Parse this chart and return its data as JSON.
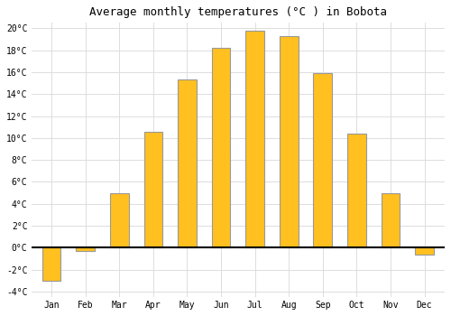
{
  "title": "Average monthly temperatures (°C ) in Bobota",
  "months": [
    "Jan",
    "Feb",
    "Mar",
    "Apr",
    "May",
    "Jun",
    "Jul",
    "Aug",
    "Sep",
    "Oct",
    "Nov",
    "Dec"
  ],
  "temperatures": [
    -3.0,
    -0.3,
    5.0,
    10.6,
    15.3,
    18.2,
    19.8,
    19.3,
    15.9,
    10.4,
    5.0,
    -0.6
  ],
  "bar_color": "#FFC020",
  "bar_edge_color": "#999999",
  "ylim": [
    -4.5,
    20.5
  ],
  "yticks": [
    -4,
    -2,
    0,
    2,
    4,
    6,
    8,
    10,
    12,
    14,
    16,
    18,
    20
  ],
  "ytick_labels": [
    "-4°C",
    "-2°C",
    "0°C",
    "2°C",
    "4°C",
    "6°C",
    "8°C",
    "10°C",
    "12°C",
    "14°C",
    "16°C",
    "18°C",
    "20°C"
  ],
  "background_color": "#ffffff",
  "grid_color": "#dddddd",
  "title_fontsize": 9,
  "tick_fontsize": 7,
  "bar_width": 0.55
}
